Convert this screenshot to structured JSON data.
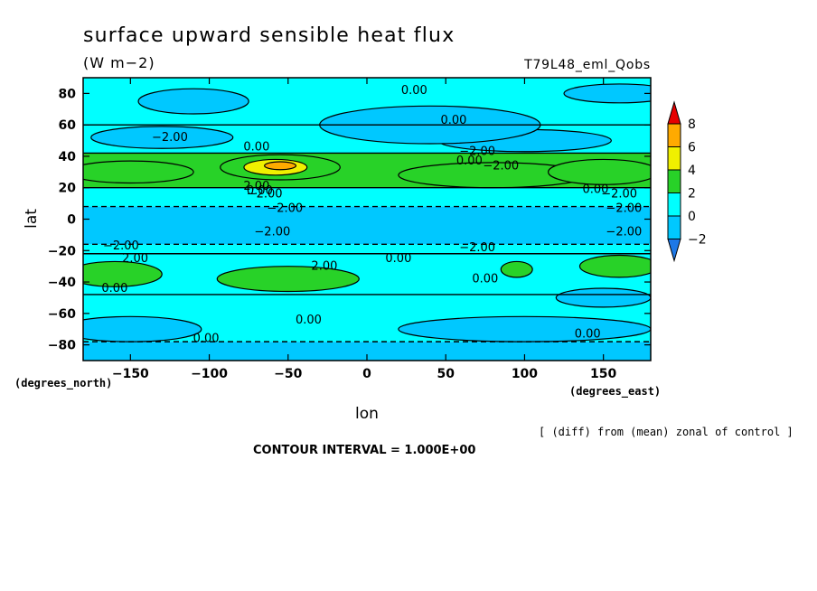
{
  "chart_data": {
    "type": "heatmap",
    "title": "surface upward sensible heat flux",
    "units": "(W m−2)",
    "case_label": "T79L48_eml_Qobs",
    "xlabel": "lon",
    "ylabel": "lat",
    "x_units": "(degrees_east)",
    "y_units": "(degrees_north)",
    "xlim": [
      -180,
      180
    ],
    "ylim": [
      -90,
      90
    ],
    "x_ticks": [
      -150,
      -100,
      -50,
      0,
      50,
      100,
      150
    ],
    "y_ticks": [
      -80,
      -60,
      -40,
      -20,
      0,
      20,
      40,
      60,
      80
    ],
    "note": "[ (diff) from (mean) zonal of control ]",
    "contour_interval_text": "CONTOUR INTERVAL = 1.000E+00",
    "colorbar": {
      "levels": [
        -2,
        0,
        2,
        4,
        6,
        8
      ],
      "colors": [
        "#1e78e6",
        "#00c8ff",
        "#00ffff",
        "#28d228",
        "#f0f000",
        "#ffaa00",
        "#e60000"
      ],
      "label_values": [
        "8",
        "6",
        "4",
        "2",
        "0",
        "−2"
      ]
    },
    "bands": [
      {
        "lat": [
          -90,
          -78
        ],
        "class": 1
      },
      {
        "lat": [
          -78,
          -48
        ],
        "class": 2
      },
      {
        "lat": [
          -48,
          -22
        ],
        "class": 2
      },
      {
        "lat": [
          -22,
          -16
        ],
        "class": 2
      },
      {
        "lat": [
          -16,
          8
        ],
        "class": 1
      },
      {
        "lat": [
          8,
          20
        ],
        "class": 2
      },
      {
        "lat": [
          20,
          42
        ],
        "class": 3
      },
      {
        "lat": [
          42,
          60
        ],
        "class": 2
      },
      {
        "lat": [
          60,
          90
        ],
        "class": 2
      }
    ],
    "blobs": [
      {
        "lon": -55,
        "lat": 33,
        "rlon": 38,
        "rlat": 8,
        "class": 3
      },
      {
        "lon": -58,
        "lat": 33,
        "rlon": 20,
        "rlat": 5,
        "class": 4
      },
      {
        "lon": -55,
        "lat": 34,
        "rlon": 10,
        "rlat": 2.5,
        "class": 5
      },
      {
        "lon": 80,
        "lat": 28,
        "rlon": 60,
        "rlat": 8,
        "class": 3
      },
      {
        "lon": 150,
        "lat": 30,
        "rlon": 35,
        "rlat": 8,
        "class": 3
      },
      {
        "lon": -150,
        "lat": 30,
        "rlon": 40,
        "rlat": 7,
        "class": 3
      },
      {
        "lon": -50,
        "lat": -38,
        "rlon": 45,
        "rlat": 8,
        "class": 3
      },
      {
        "lon": -160,
        "lat": -35,
        "rlon": 30,
        "rlat": 8,
        "class": 3
      },
      {
        "lon": 160,
        "lat": -30,
        "rlon": 25,
        "rlat": 7,
        "class": 3
      },
      {
        "lon": 95,
        "lat": -32,
        "rlon": 10,
        "rlat": 5,
        "class": 3
      },
      {
        "lon": -130,
        "lat": 52,
        "rlon": 45,
        "rlat": 7,
        "class": 1
      },
      {
        "lon": 100,
        "lat": 50,
        "rlon": 55,
        "rlat": 7,
        "class": 1
      },
      {
        "lon": 150,
        "lat": -50,
        "rlon": 30,
        "rlat": 6,
        "class": 1
      },
      {
        "lon": 40,
        "lat": 60,
        "rlon": 70,
        "rlat": 12,
        "class": 1
      },
      {
        "lon": -110,
        "lat": 75,
        "rlon": 35,
        "rlat": 8,
        "class": 1
      },
      {
        "lon": 160,
        "lat": 80,
        "rlon": 35,
        "rlat": 6,
        "class": 1
      },
      {
        "lon": -150,
        "lat": -70,
        "rlon": 45,
        "rlat": 8,
        "class": 1
      },
      {
        "lon": 100,
        "lat": -70,
        "rlon": 80,
        "rlat": 8,
        "class": 1
      }
    ],
    "contour_labels": [
      {
        "text": "0.00",
        "lon": 30,
        "lat": 82
      },
      {
        "text": "0.00",
        "lon": 55,
        "lat": 63
      },
      {
        "text": "−2.00",
        "lon": -125,
        "lat": 52
      },
      {
        "text": "0.00",
        "lon": -70,
        "lat": 46
      },
      {
        "text": "−2.00",
        "lon": 70,
        "lat": 43
      },
      {
        "text": "0.00",
        "lon": 65,
        "lat": 37
      },
      {
        "text": "−2.00",
        "lon": 85,
        "lat": 34
      },
      {
        "text": "2.00",
        "lon": -70,
        "lat": 21
      },
      {
        "text": "0.00",
        "lon": -68,
        "lat": 18
      },
      {
        "text": "−2.00",
        "lon": -65,
        "lat": 16
      },
      {
        "text": "0.00",
        "lon": 145,
        "lat": 19
      },
      {
        "text": "−2.00",
        "lon": 160,
        "lat": 16
      },
      {
        "text": "−2.00",
        "lon": -52,
        "lat": 7
      },
      {
        "text": "−2.00",
        "lon": 163,
        "lat": 7
      },
      {
        "text": "−2.00",
        "lon": -60,
        "lat": -8
      },
      {
        "text": "−2.00",
        "lon": 163,
        "lat": -8
      },
      {
        "text": "−2.00",
        "lon": -156,
        "lat": -17
      },
      {
        "text": "−2.00",
        "lon": 70,
        "lat": -18
      },
      {
        "text": "2.00",
        "lon": -147,
        "lat": -25
      },
      {
        "text": "0.00",
        "lon": 20,
        "lat": -25
      },
      {
        "text": "2.00",
        "lon": -27,
        "lat": -30
      },
      {
        "text": "0.00",
        "lon": 75,
        "lat": -38
      },
      {
        "text": "0.00",
        "lon": -160,
        "lat": -44
      },
      {
        "text": "0.00",
        "lon": -37,
        "lat": -64
      },
      {
        "text": "0.00",
        "lon": -102,
        "lat": -76
      },
      {
        "text": "0.00",
        "lon": 140,
        "lat": -73
      }
    ],
    "grid": false
  }
}
